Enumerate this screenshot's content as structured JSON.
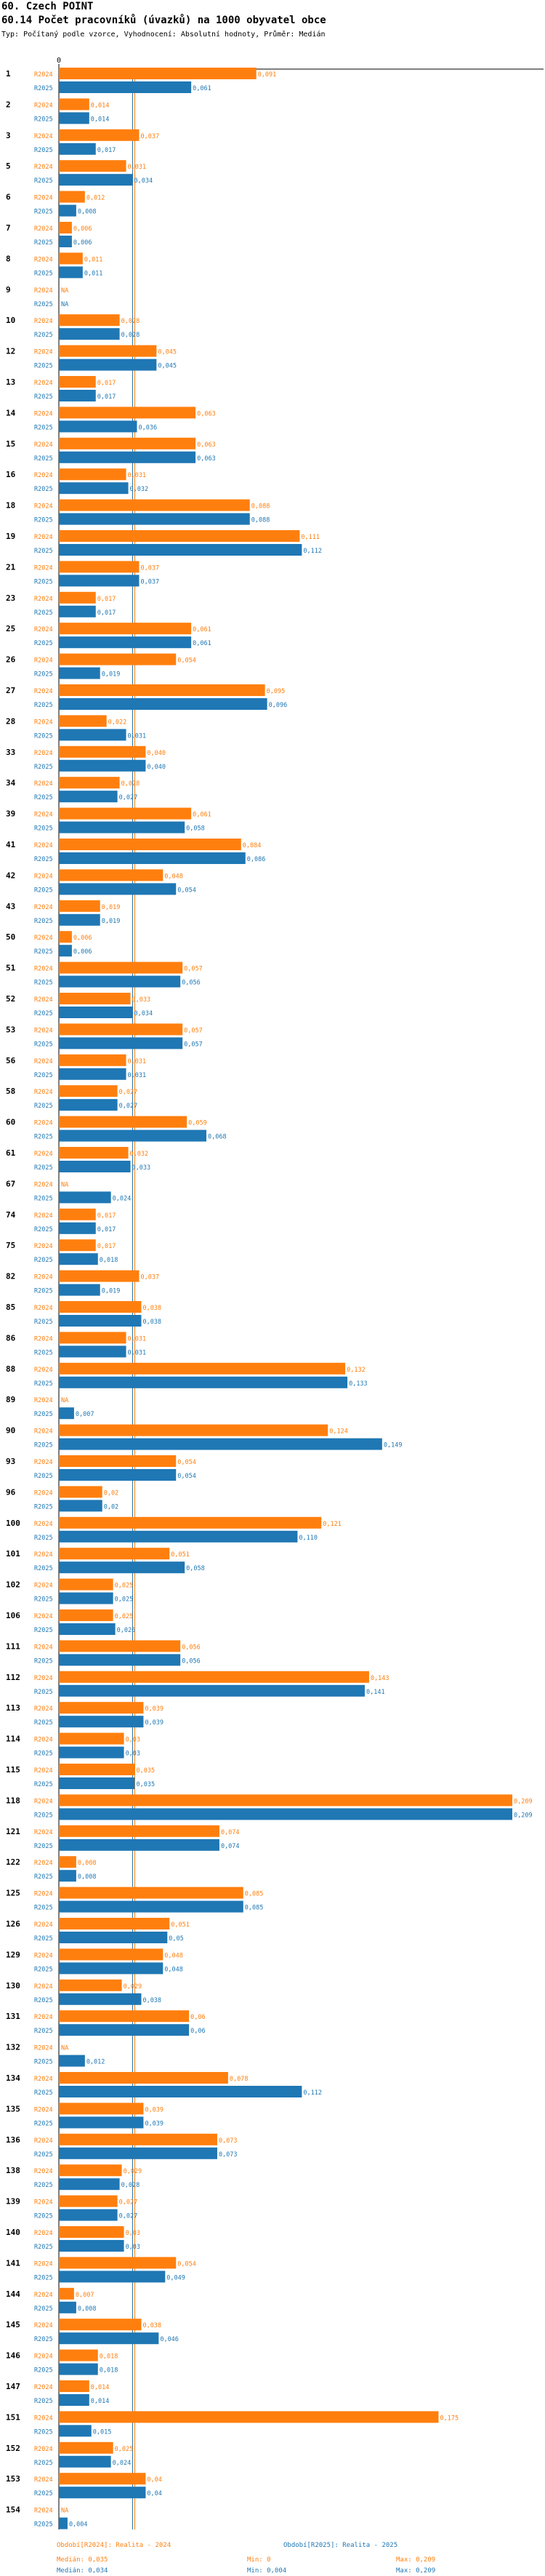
{
  "header": {
    "title": "60. Czech POINT",
    "subtitle": "60.14 Počet pracovníků (úvazků) na 1000 obyvatel obce",
    "description": "Typ: Počítaný podle vzorce, Vyhodnocení: Absolutní hodnoty, Průměr: Medián"
  },
  "colors": {
    "r2024": "#ff7f0e",
    "r2025": "#1f77b4",
    "median2024": "#ff7f0e",
    "median2025": "#1f77b4"
  },
  "chart_data": {
    "type": "bar",
    "orientation": "horizontal",
    "axis_zero_label": "0",
    "xlim": [
      0,
      0.209
    ],
    "series_labels": [
      "R2024",
      "R2025"
    ],
    "no_value_label": "NA",
    "categories": [
      "1",
      "2",
      "3",
      "5",
      "6",
      "7",
      "8",
      "9",
      "10",
      "12",
      "13",
      "14",
      "15",
      "16",
      "18",
      "19",
      "21",
      "23",
      "25",
      "26",
      "27",
      "28",
      "33",
      "34",
      "39",
      "41",
      "42",
      "43",
      "50",
      "51",
      "52",
      "53",
      "56",
      "58",
      "60",
      "61",
      "67",
      "74",
      "75",
      "82",
      "85",
      "86",
      "88",
      "89",
      "90",
      "93",
      "96",
      "100",
      "101",
      "102",
      "106",
      "111",
      "112",
      "113",
      "114",
      "115",
      "118",
      "121",
      "122",
      "125",
      "126",
      "129",
      "130",
      "131",
      "132",
      "134",
      "135",
      "136",
      "138",
      "139",
      "140",
      "141",
      "144",
      "145",
      "146",
      "147",
      "151",
      "152",
      "153",
      "154"
    ],
    "series": [
      {
        "name": "R2024",
        "values": [
          0.091,
          0.014,
          0.037,
          0.031,
          0.012,
          0.006,
          0.011,
          null,
          0.028,
          0.045,
          0.017,
          0.063,
          0.063,
          0.031,
          0.088,
          0.111,
          0.037,
          0.017,
          0.061,
          0.054,
          0.095,
          0.022,
          0.04,
          0.028,
          0.061,
          0.084,
          0.048,
          0.019,
          0.006,
          0.057,
          0.033,
          0.057,
          0.031,
          0.027,
          0.059,
          0.032,
          null,
          0.017,
          0.017,
          0.037,
          0.038,
          0.031,
          0.132,
          null,
          0.124,
          0.054,
          0.02,
          0.121,
          0.051,
          0.025,
          0.025,
          0.056,
          0.143,
          0.039,
          0.03,
          0.035,
          0.209,
          0.074,
          0.008,
          0.085,
          0.051,
          0.048,
          0.029,
          0.06,
          null,
          0.078,
          0.039,
          0.073,
          0.029,
          0.027,
          0.03,
          0.054,
          0.007,
          0.038,
          0.018,
          0.014,
          0.175,
          0.025,
          0.04,
          null
        ]
      },
      {
        "name": "R2025",
        "values": [
          0.061,
          0.014,
          0.017,
          0.034,
          0.008,
          0.006,
          0.011,
          null,
          0.028,
          0.045,
          0.017,
          0.036,
          0.063,
          0.032,
          0.088,
          0.112,
          0.037,
          0.017,
          0.061,
          0.019,
          0.096,
          0.031,
          0.04,
          0.027,
          0.058,
          0.086,
          0.054,
          0.019,
          0.006,
          0.056,
          0.034,
          0.057,
          0.031,
          0.027,
          0.068,
          0.033,
          0.024,
          0.017,
          0.018,
          0.019,
          0.038,
          0.031,
          0.133,
          0.007,
          0.149,
          0.054,
          0.02,
          0.11,
          0.058,
          0.025,
          0.026,
          0.056,
          0.141,
          0.039,
          0.03,
          0.035,
          0.209,
          0.074,
          0.008,
          0.085,
          0.05,
          0.048,
          0.038,
          0.06,
          0.012,
          0.112,
          0.039,
          0.073,
          0.028,
          0.027,
          0.03,
          0.049,
          0.008,
          0.046,
          0.018,
          0.014,
          0.015,
          0.024,
          0.04,
          0.004
        ]
      }
    ],
    "value_labels": {
      "R2024": [
        "0,091",
        "0,014",
        "0,037",
        "0,031",
        "0,012",
        "0,006",
        "0,011",
        "NA",
        "0,028",
        "0,045",
        "0,017",
        "0,063",
        "0,063",
        "0,031",
        "0,088",
        "0,111",
        "0,037",
        "0,017",
        "0,061",
        "0,054",
        "0,095",
        "0,022",
        "0,040",
        "0,028",
        "0,061",
        "0,084",
        "0,048",
        "0,019",
        "0,006",
        "0,057",
        "0,033",
        "0,057",
        "0,031",
        "0,027",
        "0,059",
        "0,032",
        "NA",
        "0,017",
        "0,017",
        "0,037",
        "0,038",
        "0,031",
        "0,132",
        "NA",
        "0,124",
        "0,054",
        "0,02",
        "0,121",
        "0,051",
        "0,025",
        "0,025",
        "0,056",
        "0,143",
        "0,039",
        "0,03",
        "0,035",
        "0,209",
        "0,074",
        "0,008",
        "0,085",
        "0,051",
        "0,048",
        "0,029",
        "0,06",
        "NA",
        "0,078",
        "0,039",
        "0,073",
        "0,029",
        "0,027",
        "0,03",
        "0,054",
        "0,007",
        "0,038",
        "0,018",
        "0,014",
        "0,175",
        "0,025",
        "0,04",
        "NA"
      ],
      "R2025": [
        "0,061",
        "0,014",
        "0,017",
        "0,034",
        "0,008",
        "0,006",
        "0,011",
        "NA",
        "0,028",
        "0,045",
        "0,017",
        "0,036",
        "0,063",
        "0,032",
        "0,088",
        "0,112",
        "0,037",
        "0,017",
        "0,061",
        "0,019",
        "0,096",
        "0,031",
        "0,040",
        "0,027",
        "0,058",
        "0,086",
        "0,054",
        "0,019",
        "0,006",
        "0,056",
        "0,034",
        "0,057",
        "0,031",
        "0,027",
        "0,068",
        "0,033",
        "0,024",
        "0,017",
        "0,018",
        "0,019",
        "0,038",
        "0,031",
        "0,133",
        "0,007",
        "0,149",
        "0,054",
        "0,02",
        "0,110",
        "0,058",
        "0,025",
        "0,026",
        "0,056",
        "0,141",
        "0,039",
        "0,03",
        "0,035",
        "0,209",
        "0,074",
        "0,008",
        "0,085",
        "0,05",
        "0,048",
        "0,038",
        "0,06",
        "0,012",
        "0,112",
        "0,039",
        "0,073",
        "0,028",
        "0,027",
        "0,03",
        "0,049",
        "0,008",
        "0,046",
        "0,018",
        "0,014",
        "0,015",
        "0,024",
        "0,04",
        "0,004"
      ]
    },
    "median_lines": {
      "R2024": 0.035,
      "R2025": 0.034
    }
  },
  "legend": {
    "period_2024": "Období[R2024]: Realita - 2024",
    "period_2025": "Období[R2025]: Realita - 2025",
    "median_2024": "Medián: 0,035",
    "min_2024": "Min: 0",
    "max_2024": "Max: 0,209",
    "median_2025": "Medián: 0,034",
    "min_2025": "Min: 0,004",
    "max_2025": "Max: 0,209"
  }
}
